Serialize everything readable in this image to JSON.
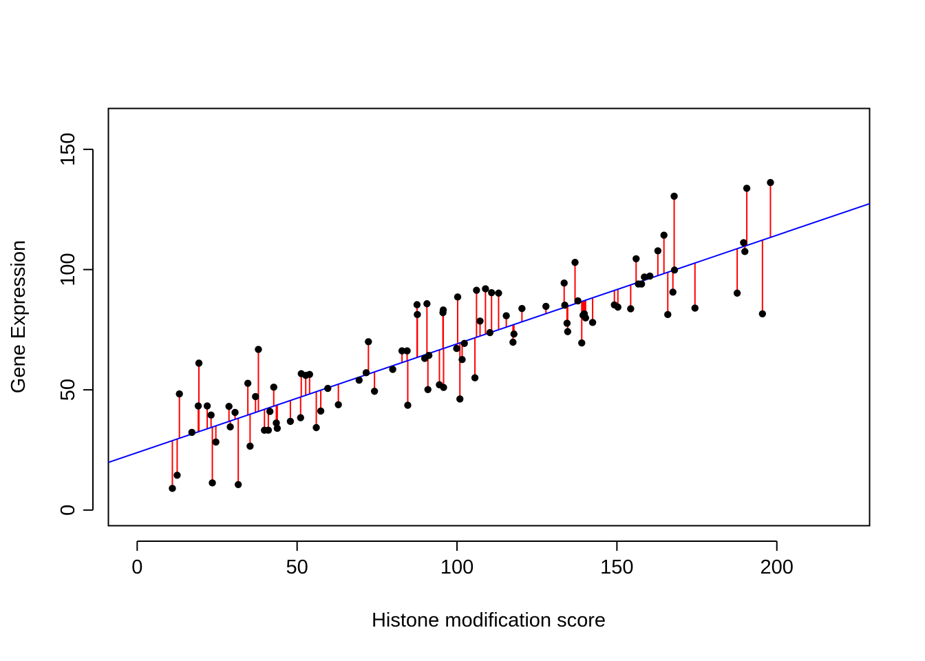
{
  "chart_data": {
    "type": "scatter",
    "title": "",
    "xlabel": "Histone modification score",
    "ylabel": "Gene Expression",
    "xlim": [
      -9,
      229
    ],
    "ylim": [
      -6.5,
      167
    ],
    "x_ticks": [
      0,
      50,
      100,
      150,
      200
    ],
    "y_ticks": [
      0,
      50,
      100,
      150
    ],
    "grid": false,
    "legend": "none",
    "fit_line": {
      "intercept": 23.9,
      "slope": 0.452,
      "color": "#0000ff"
    },
    "residual_color": "#ff0000",
    "point_color": "#000000",
    "points": [
      [
        11.0,
        9.0
      ],
      [
        12.5,
        14.5
      ],
      [
        13.2,
        48.3
      ],
      [
        17.1,
        32.3
      ],
      [
        19.1,
        43.3
      ],
      [
        19.3,
        61.1
      ],
      [
        21.9,
        43.3
      ],
      [
        23.1,
        39.5
      ],
      [
        23.5,
        11.3
      ],
      [
        24.6,
        28.3
      ],
      [
        28.7,
        43.1
      ],
      [
        29.1,
        34.6
      ],
      [
        30.6,
        40.6
      ],
      [
        31.6,
        10.6
      ],
      [
        34.6,
        52.7
      ],
      [
        35.3,
        26.6
      ],
      [
        37.0,
        47.2
      ],
      [
        37.9,
        66.8
      ],
      [
        39.8,
        33.2
      ],
      [
        41.0,
        33.2
      ],
      [
        41.5,
        41.0
      ],
      [
        42.7,
        51.1
      ],
      [
        43.5,
        36.2
      ],
      [
        43.8,
        34.0
      ],
      [
        47.9,
        36.9
      ],
      [
        51.1,
        38.4
      ],
      [
        51.3,
        56.7
      ],
      [
        52.7,
        56.0
      ],
      [
        53.9,
        56.4
      ],
      [
        56.0,
        34.3
      ],
      [
        57.4,
        41.2
      ],
      [
        59.6,
        50.6
      ],
      [
        62.9,
        43.8
      ],
      [
        69.4,
        54.0
      ],
      [
        71.6,
        57.1
      ],
      [
        72.3,
        70.0
      ],
      [
        74.2,
        49.4
      ],
      [
        79.9,
        58.5
      ],
      [
        82.8,
        66.2
      ],
      [
        84.4,
        66.2
      ],
      [
        84.6,
        43.6
      ],
      [
        87.5,
        85.4
      ],
      [
        87.6,
        81.3
      ],
      [
        89.9,
        63.1
      ],
      [
        90.6,
        85.8
      ],
      [
        90.9,
        50.1
      ],
      [
        91.2,
        64.3
      ],
      [
        94.5,
        52.1
      ],
      [
        95.6,
        82.1
      ],
      [
        95.7,
        83.2
      ],
      [
        95.8,
        51.0
      ],
      [
        99.9,
        67.2
      ],
      [
        100.2,
        88.6
      ],
      [
        100.9,
        46.2
      ],
      [
        101.6,
        62.6
      ],
      [
        102.3,
        69.3
      ],
      [
        105.6,
        55.0
      ],
      [
        106.1,
        91.4
      ],
      [
        107.2,
        78.6
      ],
      [
        108.9,
        92.0
      ],
      [
        110.3,
        73.8
      ],
      [
        110.8,
        90.4
      ],
      [
        113.0,
        90.2
      ],
      [
        115.4,
        80.8
      ],
      [
        117.8,
        73.2
      ],
      [
        117.5,
        69.8
      ],
      [
        120.3,
        83.8
      ],
      [
        127.8,
        84.7
      ],
      [
        133.5,
        94.4
      ],
      [
        133.7,
        85.2
      ],
      [
        134.4,
        77.7
      ],
      [
        134.6,
        74.2
      ],
      [
        136.9,
        103.0
      ],
      [
        137.8,
        87.0
      ],
      [
        139.0,
        69.5
      ],
      [
        139.4,
        81.0
      ],
      [
        139.8,
        81.6
      ],
      [
        140.2,
        79.9
      ],
      [
        142.4,
        78.0
      ],
      [
        149.2,
        85.3
      ],
      [
        150.3,
        84.4
      ],
      [
        154.3,
        83.7
      ],
      [
        156.0,
        104.5
      ],
      [
        156.7,
        94.0
      ],
      [
        157.7,
        94.0
      ],
      [
        158.6,
        96.9
      ],
      [
        160.3,
        97.3
      ],
      [
        162.8,
        107.8
      ],
      [
        164.7,
        114.3
      ],
      [
        165.9,
        81.3
      ],
      [
        167.5,
        90.6
      ],
      [
        167.9,
        130.5
      ],
      [
        168.0,
        99.8
      ],
      [
        174.4,
        84.0
      ],
      [
        187.6,
        90.2
      ],
      [
        189.6,
        111.2
      ],
      [
        190.0,
        107.5
      ],
      [
        190.6,
        133.8
      ],
      [
        195.5,
        81.6
      ],
      [
        198.0,
        136.2
      ]
    ]
  }
}
